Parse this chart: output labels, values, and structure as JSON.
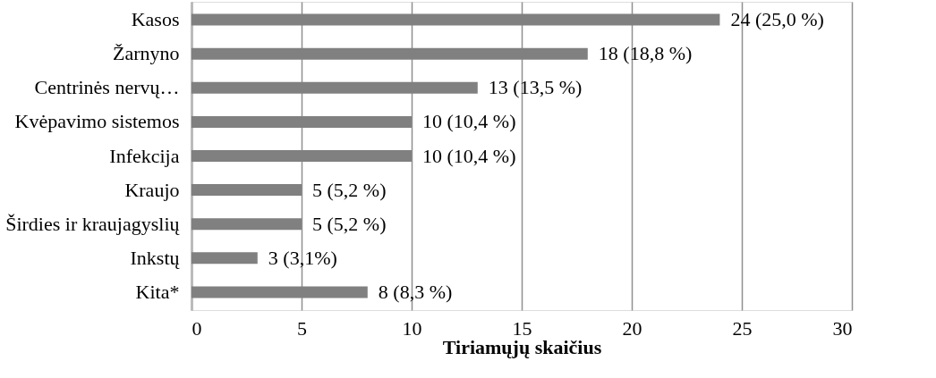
{
  "chart_data": {
    "type": "bar",
    "orientation": "horizontal",
    "xlabel": "Tiriamųjų skaičius",
    "categories": [
      "Kasos",
      "Žarnyno",
      "Centrinės nervų…",
      "Kvėpavimo sistemos",
      "Infekcija",
      "Kraujo",
      "Širdies ir kraujagyslių",
      "Inkstų",
      "Kita*"
    ],
    "values": [
      24,
      18,
      13,
      10,
      10,
      5,
      5,
      3,
      8
    ],
    "value_labels": [
      "24 (25,0 %)",
      "18 (18,8 %)",
      "13 (13,5 %)",
      "10 (10,4 %)",
      "10 (10,4 %)",
      "5 (5,2 %)",
      "5 (5,2 %)",
      "3 (3,1%)",
      "8 (8,3 %)"
    ],
    "color": "#808080",
    "xlim": [
      0,
      30
    ],
    "xticks": [
      0,
      5,
      10,
      15,
      20,
      25,
      30
    ],
    "grid": "x"
  }
}
